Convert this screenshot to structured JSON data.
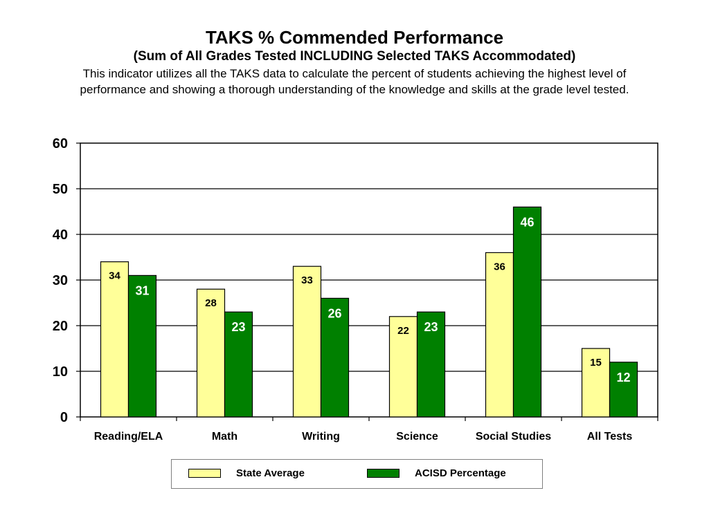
{
  "chart_data": {
    "type": "bar",
    "title": "TAKS % Commended Performance",
    "subtitle": "(Sum of All Grades Tested INCLUDING Selected TAKS Accommodated)",
    "description": "This indicator utilizes all the TAKS data to calculate the percent of students achieving the highest level of performance and showing a thorough understanding of the knowledge and skills at the grade level tested.",
    "categories": [
      "Reading/ELA",
      "Math",
      "Writing",
      "Science",
      "Social Studies",
      "All Tests"
    ],
    "series": [
      {
        "name": "State Average",
        "values": [
          34,
          28,
          33,
          22,
          36,
          15
        ],
        "color": "#ffff99",
        "label_color": "#000000"
      },
      {
        "name": "ACISD Percentage",
        "values": [
          31,
          23,
          26,
          23,
          46,
          12
        ],
        "color": "#008000",
        "label_color": "#ffffff"
      }
    ],
    "ylim": [
      0,
      60
    ],
    "yticks": [
      0,
      10,
      20,
      30,
      40,
      50,
      60
    ],
    "grid": true,
    "legend_position": "bottom"
  }
}
